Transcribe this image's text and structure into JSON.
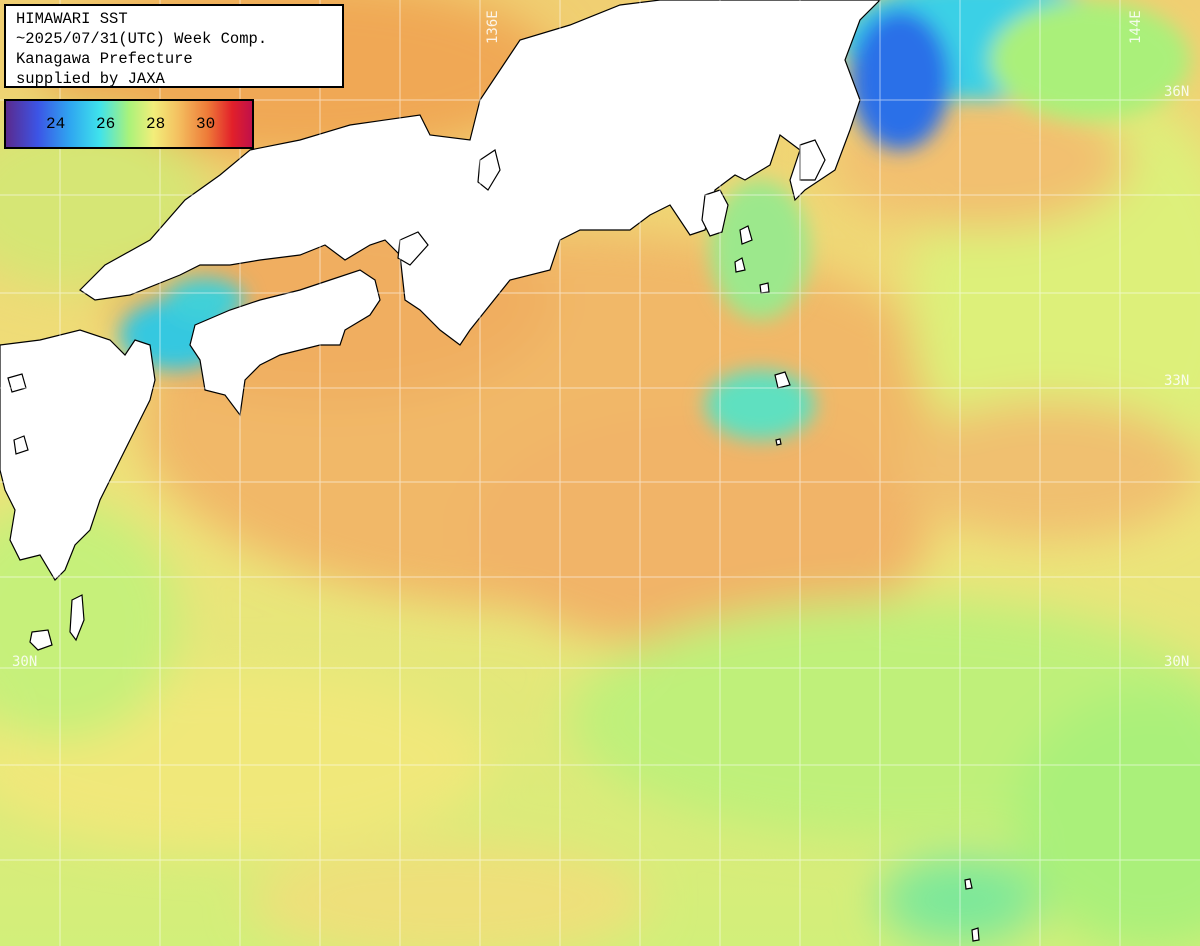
{
  "info": {
    "line1": "HIMAWARI SST",
    "line2": "~2025/07/31(UTC) Week Comp.",
    "line3": "Kanagawa Prefecture",
    "line4": "supplied by JAXA"
  },
  "legend": {
    "ticks": [
      "24",
      "26",
      "28",
      "30"
    ]
  },
  "grid": {
    "lon_labels": [
      "136E",
      "144E"
    ],
    "lat_labels_right": [
      "36N",
      "33N",
      "30N"
    ],
    "lat_labels_left": [
      "30N"
    ]
  },
  "colors": {
    "sea_warm": "#f2b060",
    "sea_mild": "#eedd7a",
    "sea_cool": "#b8f07a",
    "sea_cold": "#3ad8d8",
    "kuroshio_cold": "#2a5de0",
    "land": "#ffffff"
  }
}
